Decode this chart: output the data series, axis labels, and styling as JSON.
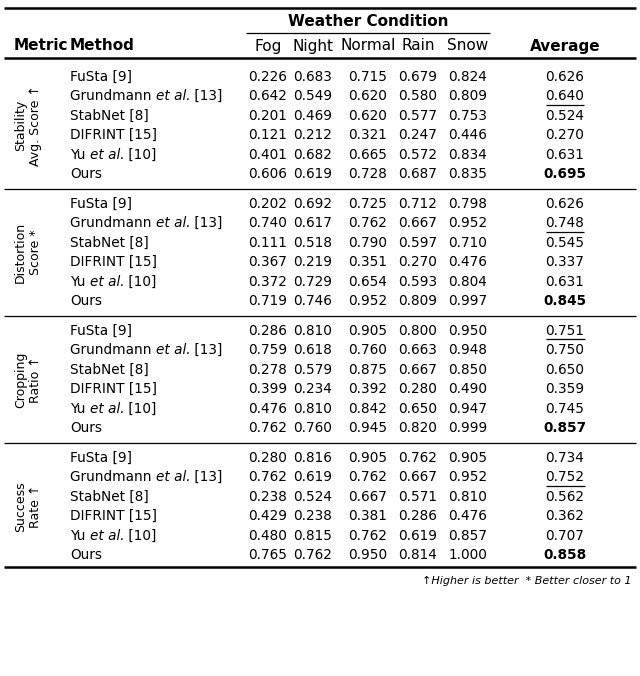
{
  "title": "Weather Condition",
  "sections": [
    {
      "metric_line1": "Stability",
      "metric_line2": "Avg. Score ↑",
      "rows": [
        {
          "method": "FuSta [9]",
          "values": [
            "0.226",
            "0.683",
            "0.715",
            "0.679",
            "0.824",
            "0.626"
          ],
          "avg_bold": false,
          "avg_underline": false
        },
        {
          "method_prefix": "Grundmann ",
          "method_italic": "et al.",
          "method_suffix": " [13]",
          "values": [
            "0.642",
            "0.549",
            "0.620",
            "0.580",
            "0.809",
            "0.640"
          ],
          "avg_bold": false,
          "avg_underline": true
        },
        {
          "method": "StabNet [8]",
          "values": [
            "0.201",
            "0.469",
            "0.620",
            "0.577",
            "0.753",
            "0.524"
          ],
          "avg_bold": false,
          "avg_underline": false
        },
        {
          "method": "DIFRINT [15]",
          "values": [
            "0.121",
            "0.212",
            "0.321",
            "0.247",
            "0.446",
            "0.270"
          ],
          "avg_bold": false,
          "avg_underline": false
        },
        {
          "method_prefix": "Yu ",
          "method_italic": "et al.",
          "method_suffix": " [10]",
          "values": [
            "0.401",
            "0.682",
            "0.665",
            "0.572",
            "0.834",
            "0.631"
          ],
          "avg_bold": false,
          "avg_underline": false
        },
        {
          "method": "Ours",
          "values": [
            "0.606",
            "0.619",
            "0.728",
            "0.687",
            "0.835",
            "0.695"
          ],
          "avg_bold": true,
          "avg_underline": false
        }
      ]
    },
    {
      "metric_line1": "Distortion",
      "metric_line2": "Score *",
      "rows": [
        {
          "method": "FuSta [9]",
          "values": [
            "0.202",
            "0.692",
            "0.725",
            "0.712",
            "0.798",
            "0.626"
          ],
          "avg_bold": false,
          "avg_underline": false
        },
        {
          "method_prefix": "Grundmann ",
          "method_italic": "et al.",
          "method_suffix": " [13]",
          "values": [
            "0.740",
            "0.617",
            "0.762",
            "0.667",
            "0.952",
            "0.748"
          ],
          "avg_bold": false,
          "avg_underline": true
        },
        {
          "method": "StabNet [8]",
          "values": [
            "0.111",
            "0.518",
            "0.790",
            "0.597",
            "0.710",
            "0.545"
          ],
          "avg_bold": false,
          "avg_underline": false
        },
        {
          "method": "DIFRINT [15]",
          "values": [
            "0.367",
            "0.219",
            "0.351",
            "0.270",
            "0.476",
            "0.337"
          ],
          "avg_bold": false,
          "avg_underline": false
        },
        {
          "method_prefix": "Yu ",
          "method_italic": "et al.",
          "method_suffix": " [10]",
          "values": [
            "0.372",
            "0.729",
            "0.654",
            "0.593",
            "0.804",
            "0.631"
          ],
          "avg_bold": false,
          "avg_underline": false
        },
        {
          "method": "Ours",
          "values": [
            "0.719",
            "0.746",
            "0.952",
            "0.809",
            "0.997",
            "0.845"
          ],
          "avg_bold": true,
          "avg_underline": false
        }
      ]
    },
    {
      "metric_line1": "Cropping",
      "metric_line2": "Ratio ↑",
      "rows": [
        {
          "method": "FuSta [9]",
          "values": [
            "0.286",
            "0.810",
            "0.905",
            "0.800",
            "0.950",
            "0.751"
          ],
          "avg_bold": false,
          "avg_underline": true
        },
        {
          "method_prefix": "Grundmann ",
          "method_italic": "et al.",
          "method_suffix": " [13]",
          "values": [
            "0.759",
            "0.618",
            "0.760",
            "0.663",
            "0.948",
            "0.750"
          ],
          "avg_bold": false,
          "avg_underline": false
        },
        {
          "method": "StabNet [8]",
          "values": [
            "0.278",
            "0.579",
            "0.875",
            "0.667",
            "0.850",
            "0.650"
          ],
          "avg_bold": false,
          "avg_underline": false
        },
        {
          "method": "DIFRINT [15]",
          "values": [
            "0.399",
            "0.234",
            "0.392",
            "0.280",
            "0.490",
            "0.359"
          ],
          "avg_bold": false,
          "avg_underline": false
        },
        {
          "method_prefix": "Yu ",
          "method_italic": "et al.",
          "method_suffix": " [10]",
          "values": [
            "0.476",
            "0.810",
            "0.842",
            "0.650",
            "0.947",
            "0.745"
          ],
          "avg_bold": false,
          "avg_underline": false
        },
        {
          "method": "Ours",
          "values": [
            "0.762",
            "0.760",
            "0.945",
            "0.820",
            "0.999",
            "0.857"
          ],
          "avg_bold": true,
          "avg_underline": false
        }
      ]
    },
    {
      "metric_line1": "Success",
      "metric_line2": "Rate ↑",
      "rows": [
        {
          "method": "FuSta [9]",
          "values": [
            "0.280",
            "0.816",
            "0.905",
            "0.762",
            "0.905",
            "0.734"
          ],
          "avg_bold": false,
          "avg_underline": false
        },
        {
          "method_prefix": "Grundmann ",
          "method_italic": "et al.",
          "method_suffix": " [13]",
          "values": [
            "0.762",
            "0.619",
            "0.762",
            "0.667",
            "0.952",
            "0.752"
          ],
          "avg_bold": false,
          "avg_underline": true
        },
        {
          "method": "StabNet [8]",
          "values": [
            "0.238",
            "0.524",
            "0.667",
            "0.571",
            "0.810",
            "0.562"
          ],
          "avg_bold": false,
          "avg_underline": false
        },
        {
          "method": "DIFRINT [15]",
          "values": [
            "0.429",
            "0.238",
            "0.381",
            "0.286",
            "0.476",
            "0.362"
          ],
          "avg_bold": false,
          "avg_underline": false
        },
        {
          "method_prefix": "Yu ",
          "method_italic": "et al.",
          "method_suffix": " [10]",
          "values": [
            "0.480",
            "0.815",
            "0.762",
            "0.619",
            "0.857",
            "0.707"
          ],
          "avg_bold": false,
          "avg_underline": false
        },
        {
          "method": "Ours",
          "values": [
            "0.765",
            "0.762",
            "0.950",
            "0.814",
            "1.000",
            "0.858"
          ],
          "avg_bold": true,
          "avg_underline": false
        }
      ]
    }
  ],
  "footnote": "↑Higher is better  * Better closer to 1"
}
